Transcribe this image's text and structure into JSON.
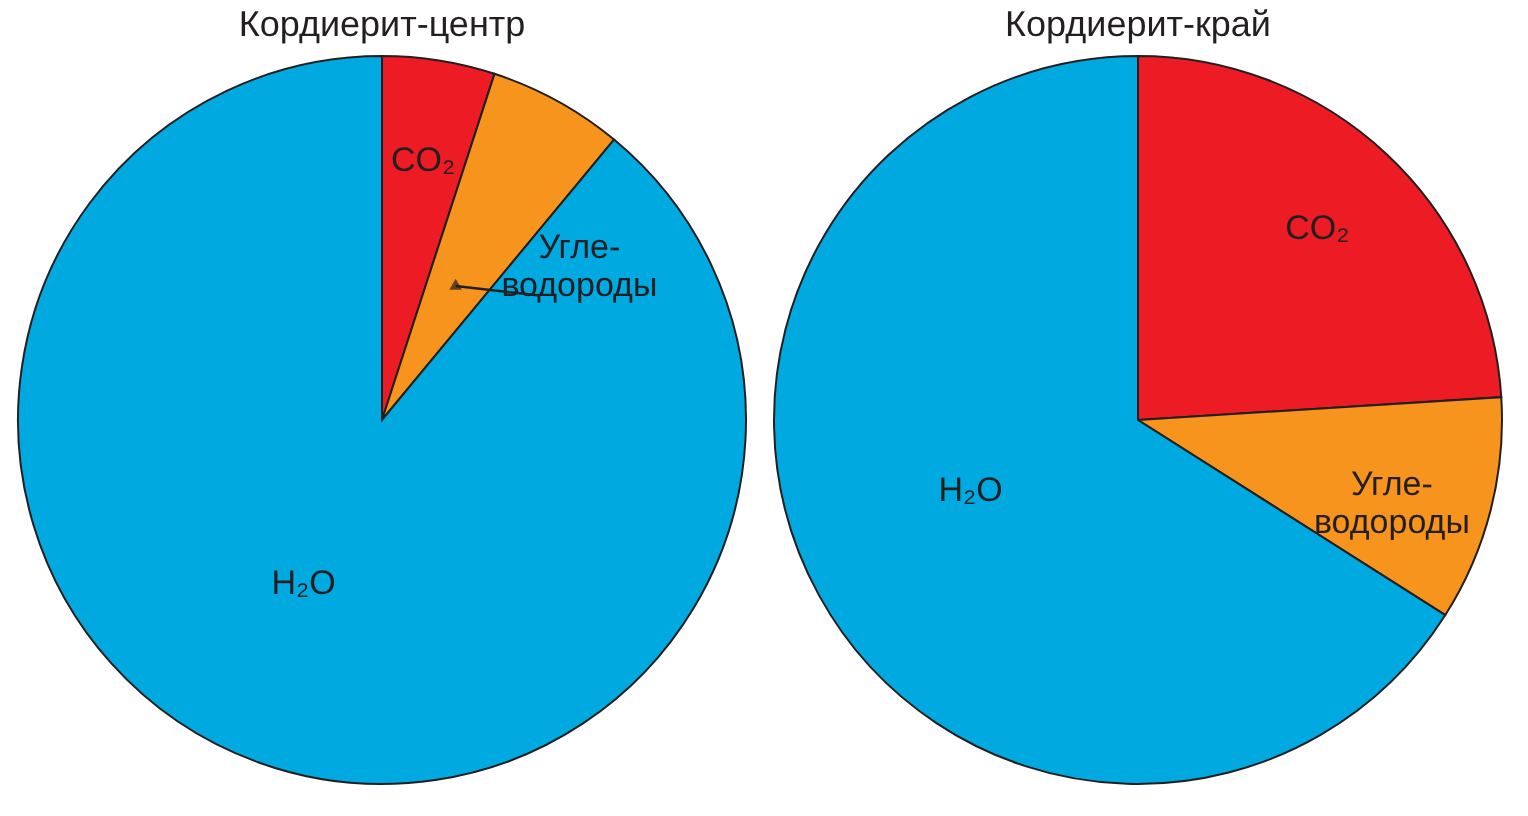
{
  "chart_data": [
    {
      "type": "pie",
      "title": "Кордиерит-центр",
      "categories": [
        "CO₂",
        "Угле-\nводороды",
        "H₂O"
      ],
      "values": [
        5,
        6,
        89
      ],
      "colors": [
        "#ed1c24",
        "#f7941d",
        "#00a9e0"
      ]
    },
    {
      "type": "pie",
      "title": "Кордиерит-край",
      "categories": [
        "CO₂",
        "Угле-\nводороды",
        "H₂O"
      ],
      "values": [
        24,
        10,
        66
      ],
      "colors": [
        "#ed1c24",
        "#f7941d",
        "#00a9e0"
      ]
    }
  ]
}
